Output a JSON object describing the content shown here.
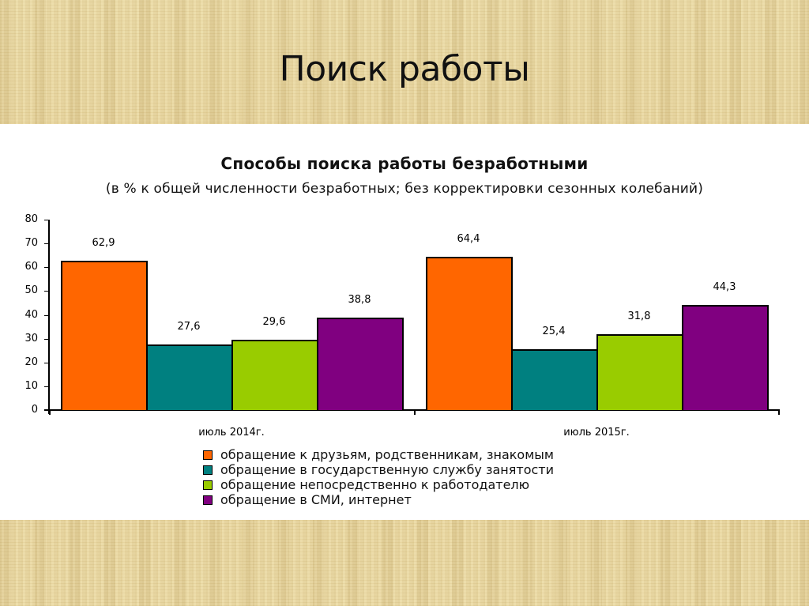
{
  "slide": {
    "title": "Поиск работы"
  },
  "chart_data": {
    "type": "bar",
    "title": "Способы поиска работы безработными",
    "subtitle": "(в % к общей численности безработных; без корректировки сезонных колебаний)",
    "xlabel": "",
    "ylabel": "",
    "ylim": [
      0,
      80
    ],
    "yticks": [
      "0",
      "10",
      "20",
      "30",
      "40",
      "50",
      "60",
      "70",
      "80"
    ],
    "grid": false,
    "legend_position": "bottom",
    "categories": [
      "июль 2014г.",
      "июль 2015г."
    ],
    "series": [
      {
        "name": "обращение к друзьям, родственникам, знакомым",
        "color": "#ff6600",
        "values": [
          62.9,
          64.4
        ],
        "labels": [
          "62,9",
          "64,4"
        ]
      },
      {
        "name": "обращение в государственную службу занятости",
        "color": "#008080",
        "values": [
          27.6,
          25.4
        ],
        "labels": [
          "27,6",
          "25,4"
        ]
      },
      {
        "name": "обращение непосредственно к работодателю",
        "color": "#99cc00",
        "values": [
          29.6,
          31.8
        ],
        "labels": [
          "29,6",
          "31,8"
        ]
      },
      {
        "name": "обращение в СМИ, интернет",
        "color": "#800080",
        "values": [
          38.8,
          44.3
        ],
        "labels": [
          "38,8",
          "44,3"
        ]
      }
    ]
  }
}
